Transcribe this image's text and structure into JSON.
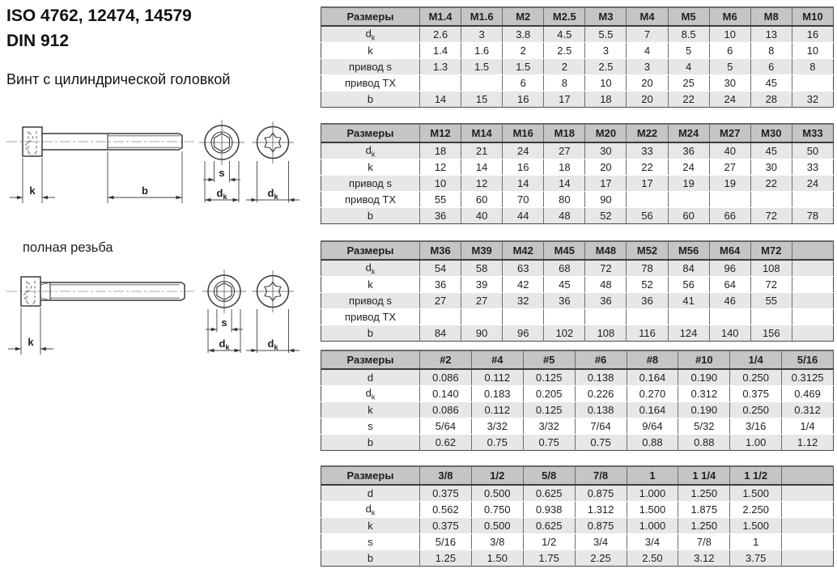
{
  "page": {
    "title_line1": "ISO 4762, 12474, 14579",
    "title_line2": "DIN 912",
    "subtitle": "Винт с цилиндрической головкой",
    "full_thread_note": "полная резьба"
  },
  "drawing": {
    "labels": {
      "k": "k",
      "b": "b",
      "s": "s",
      "d_main": "d",
      "d_sub": "k"
    }
  },
  "theme": {
    "header-bg": "#c5c5c5",
    "stripe-bg": "#e7e7e7",
    "border-dark": "#4a4a4a",
    "border-col": "#6e6e6e",
    "text": "#1f1f1f"
  },
  "tables": [
    {
      "name": "metric-m1.4-m10",
      "header": [
        "Размеры",
        "M1.4",
        "M1.6",
        "M2",
        "M2.5",
        "M3",
        "M4",
        "M5",
        "M6",
        "M8",
        "M10"
      ],
      "rows": [
        {
          "label": {
            "main": "d",
            "sub": "k"
          },
          "values": [
            "2.6",
            "3",
            "3.8",
            "4.5",
            "5.5",
            "7",
            "8.5",
            "10",
            "13",
            "16"
          ]
        },
        {
          "label": {
            "main": "k",
            "sub": ""
          },
          "values": [
            "1.4",
            "1.6",
            "2",
            "2.5",
            "3",
            "4",
            "5",
            "6",
            "8",
            "10"
          ]
        },
        {
          "label": {
            "main": "привод s",
            "sub": ""
          },
          "values": [
            "1.3",
            "1.5",
            "1.5",
            "2",
            "2.5",
            "3",
            "4",
            "5",
            "6",
            "8"
          ]
        },
        {
          "label": {
            "main": "привод TX",
            "sub": ""
          },
          "values": [
            "",
            "",
            "6",
            "8",
            "10",
            "20",
            "25",
            "30",
            "45",
            ""
          ]
        },
        {
          "label": {
            "main": "b",
            "sub": ""
          },
          "values": [
            "14",
            "15",
            "16",
            "17",
            "18",
            "20",
            "22",
            "24",
            "28",
            "32"
          ]
        }
      ]
    },
    {
      "name": "metric-m12-m33",
      "header": [
        "Размеры",
        "M12",
        "M14",
        "M16",
        "M18",
        "M20",
        "M22",
        "M24",
        "M27",
        "M30",
        "M33"
      ],
      "rows": [
        {
          "label": {
            "main": "d",
            "sub": "k"
          },
          "values": [
            "18",
            "21",
            "24",
            "27",
            "30",
            "33",
            "36",
            "40",
            "45",
            "50"
          ]
        },
        {
          "label": {
            "main": "k",
            "sub": ""
          },
          "values": [
            "12",
            "14",
            "16",
            "18",
            "20",
            "22",
            "24",
            "27",
            "30",
            "33"
          ]
        },
        {
          "label": {
            "main": "привод s",
            "sub": ""
          },
          "values": [
            "10",
            "12",
            "14",
            "14",
            "17",
            "17",
            "19",
            "19",
            "22",
            "24"
          ]
        },
        {
          "label": {
            "main": "привод TX",
            "sub": ""
          },
          "values": [
            "55",
            "60",
            "70",
            "80",
            "90",
            "",
            "",
            "",
            "",
            ""
          ]
        },
        {
          "label": {
            "main": "b",
            "sub": ""
          },
          "values": [
            "36",
            "40",
            "44",
            "48",
            "52",
            "56",
            "60",
            "66",
            "72",
            "78"
          ]
        }
      ]
    },
    {
      "name": "metric-m36-m72",
      "header": [
        "Размеры",
        "M36",
        "M39",
        "M42",
        "M45",
        "M48",
        "M52",
        "M56",
        "M64",
        "M72",
        ""
      ],
      "rows": [
        {
          "label": {
            "main": "d",
            "sub": "k"
          },
          "values": [
            "54",
            "58",
            "63",
            "68",
            "72",
            "78",
            "84",
            "96",
            "108",
            ""
          ]
        },
        {
          "label": {
            "main": "k",
            "sub": ""
          },
          "values": [
            "36",
            "39",
            "42",
            "45",
            "48",
            "52",
            "56",
            "64",
            "72",
            ""
          ]
        },
        {
          "label": {
            "main": "привод s",
            "sub": ""
          },
          "values": [
            "27",
            "27",
            "32",
            "36",
            "36",
            "36",
            "41",
            "46",
            "55",
            ""
          ]
        },
        {
          "label": {
            "main": "привод TX",
            "sub": ""
          },
          "values": [
            "",
            "",
            "",
            "",
            "",
            "",
            "",
            "",
            "",
            ""
          ]
        },
        {
          "label": {
            "main": "b",
            "sub": ""
          },
          "values": [
            "84",
            "90",
            "96",
            "102",
            "108",
            "116",
            "124",
            "140",
            "156",
            ""
          ]
        }
      ]
    },
    {
      "name": "inch-numbered-sizes",
      "header": [
        "Размеры",
        "#2",
        "#4",
        "#5",
        "#6",
        "#8",
        "#10",
        "1/4",
        "5/16"
      ],
      "rows": [
        {
          "label": {
            "main": "d",
            "sub": ""
          },
          "values": [
            "0.086",
            "0.112",
            "0.125",
            "0.138",
            "0.164",
            "0.190",
            "0.250",
            "0.3125"
          ]
        },
        {
          "label": {
            "main": "d",
            "sub": "k"
          },
          "values": [
            "0.140",
            "0.183",
            "0.205",
            "0.226",
            "0.270",
            "0.312",
            "0.375",
            "0.469"
          ]
        },
        {
          "label": {
            "main": "k",
            "sub": ""
          },
          "values": [
            "0.086",
            "0.112",
            "0.125",
            "0.138",
            "0.164",
            "0.190",
            "0.250",
            "0.312"
          ]
        },
        {
          "label": {
            "main": "s",
            "sub": ""
          },
          "values": [
            "5/64",
            "3/32",
            "3/32",
            "7/64",
            "9/64",
            "5/32",
            "3/16",
            "1/4"
          ]
        },
        {
          "label": {
            "main": "b",
            "sub": ""
          },
          "values": [
            "0.62",
            "0.75",
            "0.75",
            "0.75",
            "0.88",
            "0.88",
            "1.00",
            "1.12"
          ]
        }
      ]
    },
    {
      "name": "inch-fractional-sizes",
      "header": [
        "Размеры",
        "3/8",
        "1/2",
        "5/8",
        "7/8",
        "1",
        "1 1/4",
        "1 1/2",
        ""
      ],
      "rows": [
        {
          "label": {
            "main": "d",
            "sub": ""
          },
          "values": [
            "0.375",
            "0.500",
            "0.625",
            "0.875",
            "1.000",
            "1.250",
            "1.500",
            ""
          ]
        },
        {
          "label": {
            "main": "d",
            "sub": "k"
          },
          "values": [
            "0.562",
            "0.750",
            "0.938",
            "1.312",
            "1.500",
            "1.875",
            "2.250",
            ""
          ]
        },
        {
          "label": {
            "main": "k",
            "sub": ""
          },
          "values": [
            "0.375",
            "0.500",
            "0.625",
            "0.875",
            "1.000",
            "1.250",
            "1.500",
            ""
          ]
        },
        {
          "label": {
            "main": "s",
            "sub": ""
          },
          "values": [
            "5/16",
            "3/8",
            "1/2",
            "3/4",
            "3/4",
            "7/8",
            "1",
            ""
          ]
        },
        {
          "label": {
            "main": "b",
            "sub": ""
          },
          "values": [
            "1.25",
            "1.50",
            "1.75",
            "2.25",
            "2.50",
            "3.12",
            "3.75",
            ""
          ]
        }
      ]
    }
  ]
}
